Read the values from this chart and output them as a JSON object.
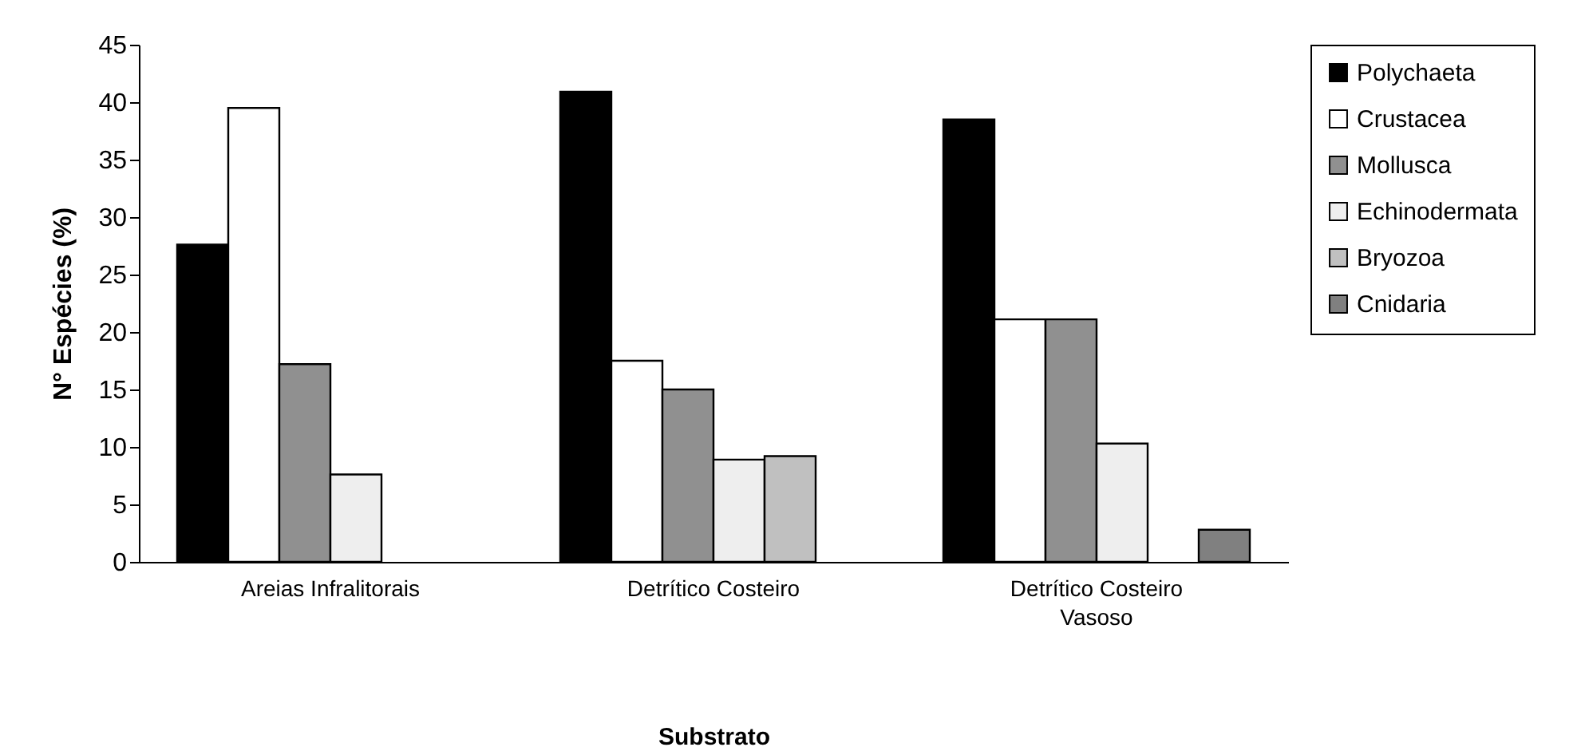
{
  "chart_data": {
    "type": "bar",
    "xlabel": "Substrato",
    "ylabel": "N° Espécies (%)",
    "categories": [
      "Areias Infralitorais",
      "Detrítico Costeiro",
      "Detrítico Costeiro Vasoso"
    ],
    "series": [
      {
        "name": "Polychaeta",
        "color": "#000000",
        "values": [
          27.6,
          40.9,
          38.5
        ]
      },
      {
        "name": "Crustacea",
        "color": "#ffffff",
        "values": [
          39.5,
          17.5,
          21.1
        ]
      },
      {
        "name": "Mollusca",
        "color": "#909090",
        "values": [
          17.2,
          15.0,
          21.1
        ]
      },
      {
        "name": "Echinodermata",
        "color": "#eeeeee",
        "values": [
          7.6,
          8.9,
          10.3
        ]
      },
      {
        "name": "Bryozoa",
        "color": "#c0c0c0",
        "values": [
          null,
          9.2,
          null
        ]
      },
      {
        "name": "Cnidaria",
        "color": "#808080",
        "values": [
          null,
          null,
          2.8
        ]
      }
    ],
    "ylim": [
      0,
      45
    ],
    "yticks": [
      0,
      5,
      10,
      15,
      20,
      25,
      30,
      35,
      40,
      45
    ],
    "grid": false,
    "legend": "right"
  }
}
